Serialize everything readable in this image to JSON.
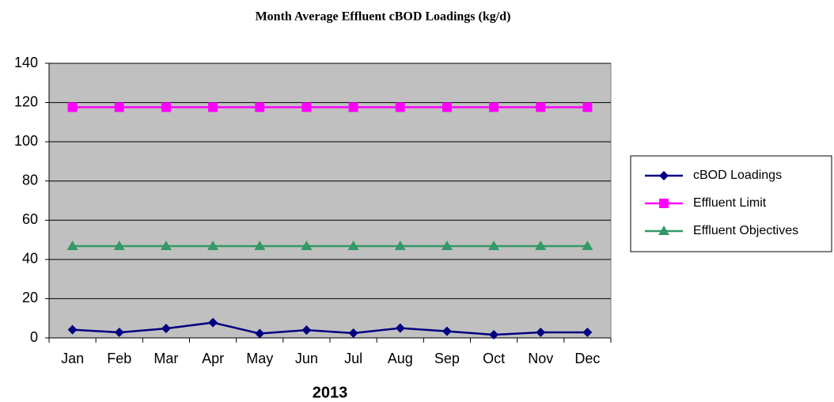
{
  "chart_data": {
    "type": "line",
    "title": "Month Average Effluent cBOD Loadings (kg/d)",
    "x_label": "2013",
    "categories": [
      "Jan",
      "Feb",
      "Mar",
      "Apr",
      "May",
      "Jun",
      "Jul",
      "Aug",
      "Sep",
      "Oct",
      "Nov",
      "Dec"
    ],
    "series": [
      {
        "name": "cBOD Loadings",
        "color": "#000080",
        "marker": "diamond",
        "values": [
          4.2,
          2.8,
          4.8,
          7.8,
          2.2,
          4.0,
          2.4,
          5.0,
          3.4,
          1.6,
          2.8,
          2.8
        ]
      },
      {
        "name": "Effluent Limit",
        "color": "#ff00ff",
        "marker": "square",
        "values": [
          117.6,
          117.6,
          117.6,
          117.6,
          117.6,
          117.6,
          117.6,
          117.6,
          117.6,
          117.6,
          117.6,
          117.6
        ]
      },
      {
        "name": "Effluent Objectives",
        "color": "#339966",
        "marker": "triangle",
        "values": [
          46.8,
          46.8,
          46.8,
          46.8,
          46.8,
          46.8,
          46.8,
          46.8,
          46.8,
          46.8,
          46.8,
          46.8
        ]
      }
    ],
    "ylim": [
      0,
      140
    ],
    "yticks": [
      0,
      20,
      40,
      60,
      80,
      100,
      120,
      140
    ],
    "grid": true,
    "legend": "right"
  }
}
